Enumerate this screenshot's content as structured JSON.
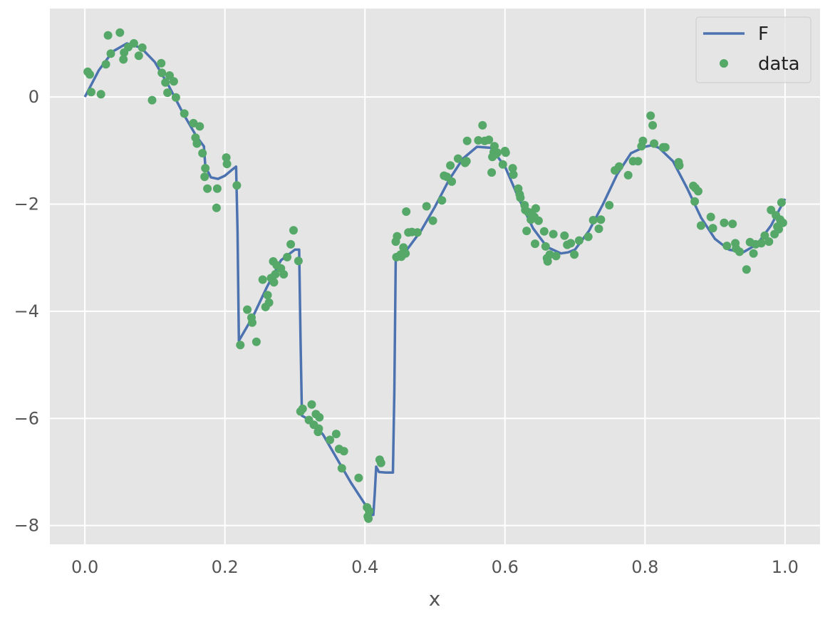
{
  "chart_data": {
    "type": "line",
    "title": "",
    "xlabel": "x",
    "ylabel": "",
    "xlim": [
      -0.05,
      1.05
    ],
    "ylim": [
      -8.35,
      1.65
    ],
    "grid": true,
    "legend_placement": "top-right",
    "xticks": [
      0.0,
      0.2,
      0.4,
      0.6,
      0.8,
      1.0
    ],
    "xtick_labels": [
      "0.0",
      "0.2",
      "0.4",
      "0.6",
      "0.8",
      "1.0"
    ],
    "yticks": [
      0,
      -2,
      -4,
      -6,
      -8
    ],
    "ytick_labels": [
      "0",
      "−2",
      "−4",
      "−6",
      "−8"
    ],
    "colors": {
      "background": "#e5e5e5",
      "grid": "#ffffff",
      "line": "#4c72b0",
      "points": "#55a868"
    },
    "series": [
      {
        "name": "F",
        "kind": "line",
        "x": [
          0.0,
          0.02,
          0.04,
          0.06,
          0.08,
          0.1,
          0.12,
          0.14,
          0.16,
          0.17,
          0.172,
          0.18,
          0.19,
          0.2,
          0.21,
          0.216,
          0.218,
          0.22,
          0.24,
          0.26,
          0.28,
          0.3,
          0.306,
          0.308,
          0.31,
          0.32,
          0.34,
          0.36,
          0.38,
          0.4,
          0.41,
          0.412,
          0.414,
          0.416,
          0.42,
          0.43,
          0.44,
          0.442,
          0.444,
          0.45,
          0.46,
          0.48,
          0.5,
          0.52,
          0.54,
          0.56,
          0.58,
          0.6,
          0.62,
          0.64,
          0.66,
          0.68,
          0.69,
          0.7,
          0.72,
          0.74,
          0.76,
          0.78,
          0.8,
          0.81,
          0.82,
          0.84,
          0.86,
          0.88,
          0.9,
          0.92,
          0.94,
          0.96,
          0.98,
          1.0
        ],
        "y": [
          0.0,
          0.5,
          0.85,
          1.0,
          0.92,
          0.65,
          0.2,
          -0.3,
          -0.75,
          -0.92,
          -1.3,
          -1.5,
          -1.53,
          -1.47,
          -1.36,
          -1.3,
          -2.5,
          -4.55,
          -4.1,
          -3.55,
          -3.05,
          -2.85,
          -2.85,
          -4.5,
          -5.95,
          -6.02,
          -6.3,
          -6.75,
          -7.2,
          -7.6,
          -7.8,
          -7.8,
          -7.4,
          -6.9,
          -7.0,
          -7.01,
          -7.01,
          -5.5,
          -2.95,
          -2.92,
          -2.85,
          -2.5,
          -2.05,
          -1.55,
          -1.15,
          -0.93,
          -0.95,
          -1.3,
          -1.9,
          -2.45,
          -2.8,
          -2.92,
          -2.9,
          -2.85,
          -2.5,
          -2.0,
          -1.45,
          -1.05,
          -0.93,
          -0.9,
          -0.95,
          -1.2,
          -1.7,
          -2.25,
          -2.65,
          -2.85,
          -2.9,
          -2.75,
          -2.4,
          -1.9
        ]
      },
      {
        "name": "data",
        "kind": "scatter",
        "points": [
          [
            0.004,
            0.47
          ],
          [
            0.007,
            0.42
          ],
          [
            0.009,
            0.09
          ],
          [
            0.023,
            0.05
          ],
          [
            0.03,
            0.61
          ],
          [
            0.033,
            1.15
          ],
          [
            0.037,
            0.81
          ],
          [
            0.05,
            1.2
          ],
          [
            0.055,
            0.7
          ],
          [
            0.056,
            0.83
          ],
          [
            0.062,
            0.93
          ],
          [
            0.07,
            1.0
          ],
          [
            0.077,
            0.77
          ],
          [
            0.082,
            0.92
          ],
          [
            0.096,
            -0.06
          ],
          [
            0.109,
            0.63
          ],
          [
            0.11,
            0.45
          ],
          [
            0.115,
            0.27
          ],
          [
            0.118,
            0.08
          ],
          [
            0.121,
            0.4
          ],
          [
            0.127,
            0.29
          ],
          [
            0.13,
            -0.01
          ],
          [
            0.142,
            -0.31
          ],
          [
            0.155,
            -0.49
          ],
          [
            0.158,
            -0.76
          ],
          [
            0.16,
            -0.87
          ],
          [
            0.164,
            -0.55
          ],
          [
            0.168,
            -1.05
          ],
          [
            0.171,
            -1.49
          ],
          [
            0.172,
            -1.33
          ],
          [
            0.175,
            -1.71
          ],
          [
            0.188,
            -2.07
          ],
          [
            0.189,
            -1.71
          ],
          [
            0.202,
            -1.13
          ],
          [
            0.203,
            -1.25
          ],
          [
            0.217,
            -1.65
          ],
          [
            0.222,
            -4.63
          ],
          [
            0.232,
            -3.97
          ],
          [
            0.238,
            -4.12
          ],
          [
            0.239,
            -4.21
          ],
          [
            0.245,
            -4.57
          ],
          [
            0.254,
            -3.41
          ],
          [
            0.258,
            -3.92
          ],
          [
            0.261,
            -3.7
          ],
          [
            0.263,
            -3.84
          ],
          [
            0.266,
            -3.38
          ],
          [
            0.269,
            -3.07
          ],
          [
            0.27,
            -3.46
          ],
          [
            0.272,
            -3.31
          ],
          [
            0.274,
            -3.14
          ],
          [
            0.28,
            -3.2
          ],
          [
            0.284,
            -3.31
          ],
          [
            0.289,
            -2.99
          ],
          [
            0.294,
            -2.75
          ],
          [
            0.298,
            -2.49
          ],
          [
            0.305,
            -3.06
          ],
          [
            0.308,
            -5.87
          ],
          [
            0.311,
            -5.82
          ],
          [
            0.32,
            -6.03
          ],
          [
            0.324,
            -5.74
          ],
          [
            0.327,
            -6.12
          ],
          [
            0.33,
            -5.92
          ],
          [
            0.333,
            -6.25
          ],
          [
            0.334,
            -6.19
          ],
          [
            0.335,
            -5.98
          ],
          [
            0.35,
            -6.4
          ],
          [
            0.359,
            -6.29
          ],
          [
            0.363,
            -6.57
          ],
          [
            0.367,
            -6.93
          ],
          [
            0.37,
            -6.61
          ],
          [
            0.391,
            -7.11
          ],
          [
            0.403,
            -7.66
          ],
          [
            0.404,
            -7.83
          ],
          [
            0.405,
            -7.87
          ],
          [
            0.406,
            -7.73
          ],
          [
            0.421,
            -6.77
          ],
          [
            0.423,
            -6.83
          ],
          [
            0.444,
            -2.7
          ],
          [
            0.445,
            -2.99
          ],
          [
            0.446,
            -2.6
          ],
          [
            0.451,
            -2.94
          ],
          [
            0.452,
            -2.98
          ],
          [
            0.455,
            -2.81
          ],
          [
            0.458,
            -2.92
          ],
          [
            0.459,
            -2.14
          ],
          [
            0.462,
            -2.53
          ],
          [
            0.467,
            -2.52
          ],
          [
            0.475,
            -2.53
          ],
          [
            0.488,
            -2.04
          ],
          [
            0.497,
            -2.31
          ],
          [
            0.51,
            -1.93
          ],
          [
            0.513,
            -1.47
          ],
          [
            0.517,
            -1.49
          ],
          [
            0.522,
            -1.28
          ],
          [
            0.524,
            -1.58
          ],
          [
            0.533,
            -1.15
          ],
          [
            0.543,
            -1.23
          ],
          [
            0.545,
            -1.2
          ],
          [
            0.546,
            -0.82
          ],
          [
            0.562,
            -0.81
          ],
          [
            0.568,
            -0.53
          ],
          [
            0.571,
            -0.82
          ],
          [
            0.577,
            -0.8
          ],
          [
            0.581,
            -1.41
          ],
          [
            0.582,
            -1.12
          ],
          [
            0.584,
            -1.03
          ],
          [
            0.585,
            -0.92
          ],
          [
            0.587,
            -1.07
          ],
          [
            0.589,
            -1.04
          ],
          [
            0.597,
            -1.26
          ],
          [
            0.6,
            -1.01
          ],
          [
            0.601,
            -1.04
          ],
          [
            0.611,
            -1.33
          ],
          [
            0.612,
            -1.45
          ],
          [
            0.619,
            -1.71
          ],
          [
            0.621,
            -1.82
          ],
          [
            0.622,
            -1.88
          ],
          [
            0.628,
            -2.02
          ],
          [
            0.629,
            -2.11
          ],
          [
            0.631,
            -2.5
          ],
          [
            0.633,
            -2.15
          ],
          [
            0.637,
            -2.29
          ],
          [
            0.638,
            -2.16
          ],
          [
            0.642,
            -2.24
          ],
          [
            0.643,
            -2.74
          ],
          [
            0.644,
            -2.08
          ],
          [
            0.648,
            -2.31
          ],
          [
            0.656,
            -2.51
          ],
          [
            0.658,
            -2.79
          ],
          [
            0.66,
            -3.01
          ],
          [
            0.661,
            -3.07
          ],
          [
            0.664,
            -2.94
          ],
          [
            0.669,
            -2.56
          ],
          [
            0.673,
            -2.97
          ],
          [
            0.685,
            -2.59
          ],
          [
            0.689,
            -2.76
          ],
          [
            0.694,
            -2.73
          ],
          [
            0.699,
            -2.94
          ],
          [
            0.706,
            -2.68
          ],
          [
            0.719,
            -2.61
          ],
          [
            0.726,
            -2.3
          ],
          [
            0.734,
            -2.46
          ],
          [
            0.737,
            -2.29
          ],
          [
            0.749,
            -2.02
          ],
          [
            0.757,
            -1.37
          ],
          [
            0.763,
            -1.3
          ],
          [
            0.776,
            -1.46
          ],
          [
            0.783,
            -1.2
          ],
          [
            0.79,
            -1.2
          ],
          [
            0.795,
            -0.92
          ],
          [
            0.797,
            -0.82
          ],
          [
            0.808,
            -0.35
          ],
          [
            0.811,
            -0.53
          ],
          [
            0.813,
            -0.87
          ],
          [
            0.826,
            -0.94
          ],
          [
            0.829,
            -0.94
          ],
          [
            0.848,
            -1.22
          ],
          [
            0.849,
            -1.28
          ],
          [
            0.869,
            -1.66
          ],
          [
            0.871,
            -1.95
          ],
          [
            0.872,
            -1.7
          ],
          [
            0.876,
            -1.76
          ],
          [
            0.88,
            -2.4
          ],
          [
            0.894,
            -2.24
          ],
          [
            0.897,
            -2.45
          ],
          [
            0.913,
            -2.35
          ],
          [
            0.917,
            -2.78
          ],
          [
            0.925,
            -2.37
          ],
          [
            0.929,
            -2.73
          ],
          [
            0.93,
            -2.83
          ],
          [
            0.935,
            -2.89
          ],
          [
            0.945,
            -3.22
          ],
          [
            0.95,
            -2.71
          ],
          [
            0.955,
            -2.92
          ],
          [
            0.958,
            -2.75
          ],
          [
            0.966,
            -2.73
          ],
          [
            0.971,
            -2.59
          ],
          [
            0.977,
            -2.7
          ],
          [
            0.98,
            -2.11
          ],
          [
            0.985,
            -2.56
          ],
          [
            0.987,
            -2.21
          ],
          [
            0.989,
            -2.42
          ],
          [
            0.991,
            -2.47
          ],
          [
            0.993,
            -2.29
          ],
          [
            0.995,
            -1.97
          ],
          [
            0.997,
            -2.35
          ]
        ]
      }
    ]
  }
}
